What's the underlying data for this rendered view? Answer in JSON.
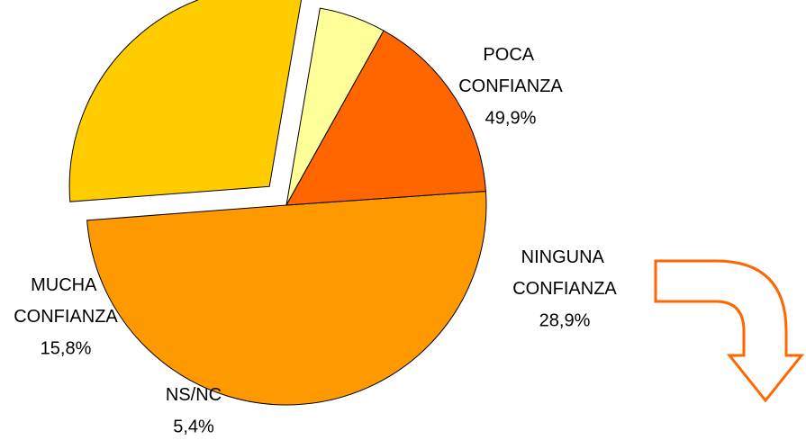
{
  "chart_data": {
    "type": "pie",
    "categories": [
      "POCA CONFIANZA",
      "NINGUNA CONFIANZA",
      "NS/NC",
      "MUCHA CONFIANZA"
    ],
    "values": [
      49.9,
      28.9,
      5.4,
      15.8
    ],
    "value_labels": [
      "49,9%",
      "28,9%",
      "5,4%",
      "15,8%"
    ],
    "colors": [
      "#ff9900",
      "#ffcc00",
      "#ffff99",
      "#ff6600"
    ]
  }
}
